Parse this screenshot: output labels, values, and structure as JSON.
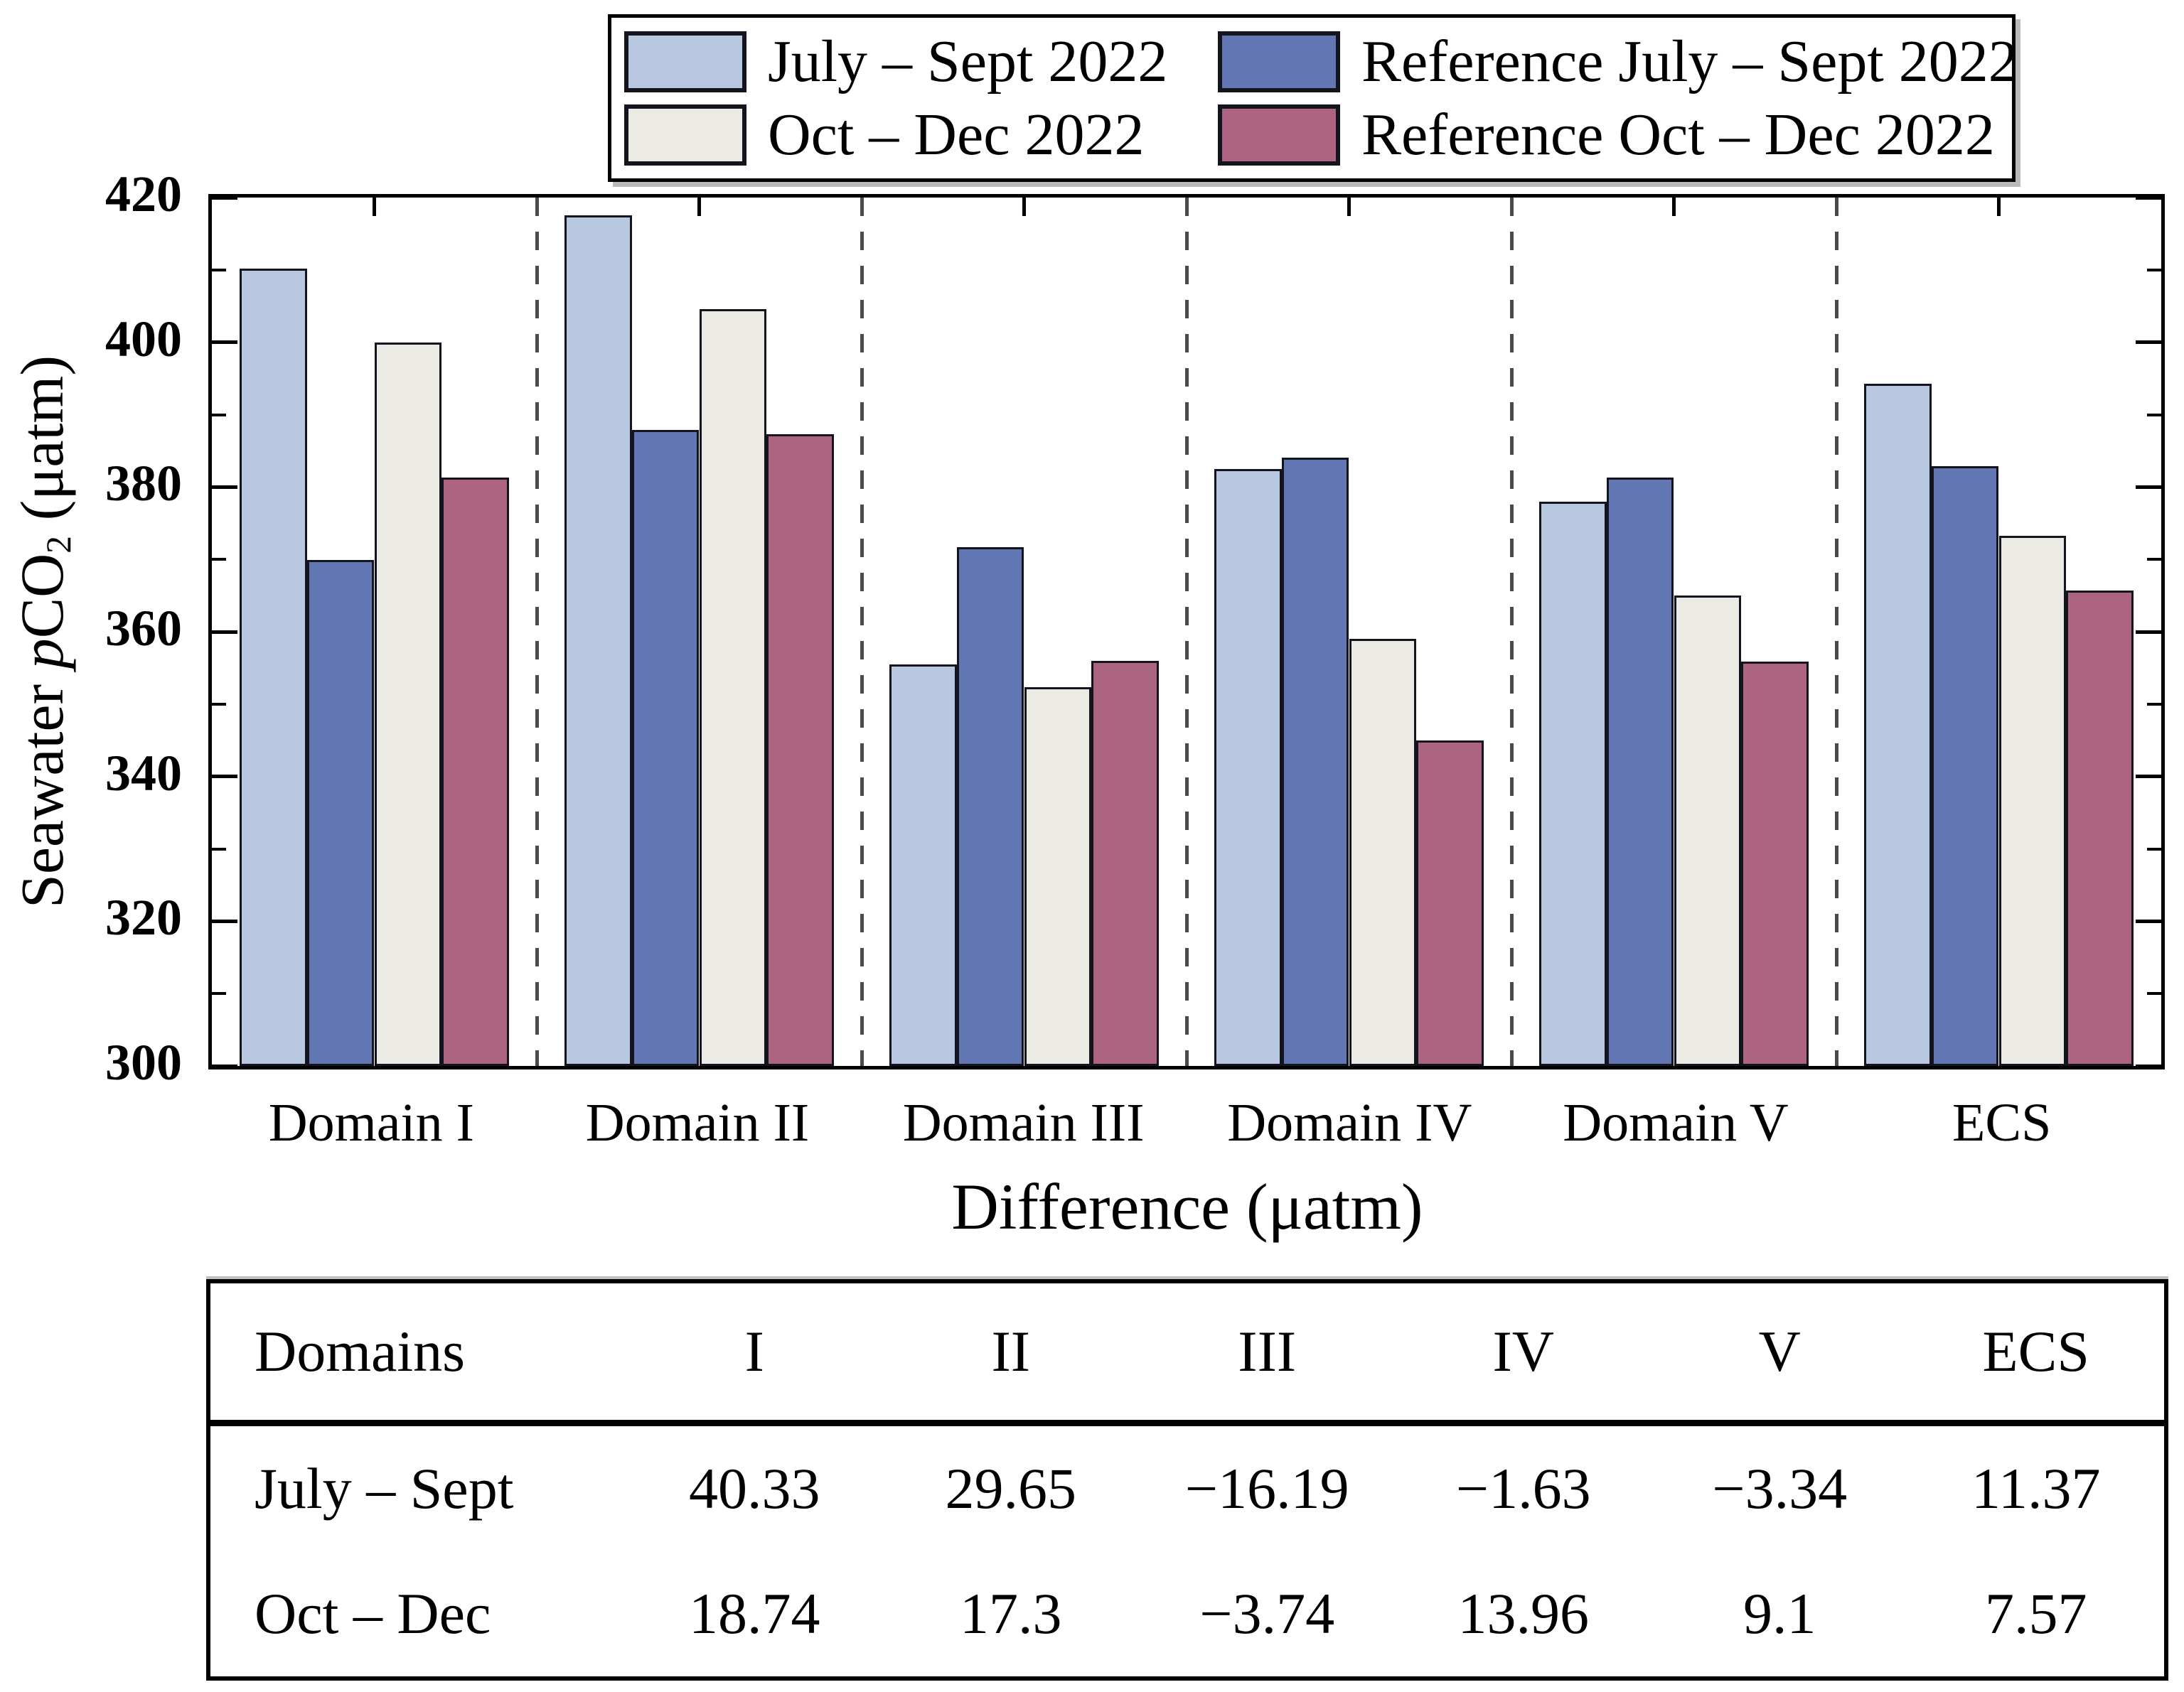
{
  "chart_data": {
    "type": "bar",
    "categories": [
      "Domain I",
      "Domain II",
      "Domain III",
      "Domain IV",
      "Domain V",
      "ECS"
    ],
    "series": [
      {
        "name": "July – Sept 2022",
        "color": "#b8c8e0",
        "values": [
          410.2,
          417.5,
          355.5,
          382.5,
          378.0,
          394.3
        ]
      },
      {
        "name": "Reference July – Sept 2022",
        "color": "#6377b4",
        "values": [
          369.9,
          387.9,
          371.7,
          384.1,
          381.3,
          382.9
        ]
      },
      {
        "name": "Oct – Dec 2022",
        "color": "#eceae4",
        "values": [
          400.0,
          404.6,
          352.3,
          359.0,
          365.0,
          373.3
        ]
      },
      {
        "name": "Reference Oct – Dec 2022",
        "color": "#ad6480",
        "values": [
          381.3,
          387.3,
          356.0,
          345.0,
          355.9,
          365.7
        ]
      }
    ],
    "ylabel_parts": {
      "prefix": "Seawater ",
      "p_italic": "p",
      "co": "CO",
      "sub": "2",
      "suffix": " (μatm)"
    },
    "ylim": [
      300,
      420
    ],
    "ytick_major": 20,
    "ytick_minor": 10,
    "grid": false,
    "legend_position": "top-center",
    "group_separators": "dashed"
  },
  "difference_table": {
    "title": "Difference (μatm)",
    "header": [
      "Domains",
      "I",
      "II",
      "III",
      "IV",
      "V",
      "ECS"
    ],
    "rows": [
      {
        "label": "July – Sept",
        "values": [
          "40.33",
          "29.65",
          "−16.19",
          "−1.63",
          "−3.34",
          "11.37"
        ]
      },
      {
        "label": "Oct – Dec",
        "values": [
          "18.74",
          "17.3",
          "−3.74",
          "13.96",
          "9.1",
          "7.57"
        ]
      }
    ]
  },
  "colors": {
    "bar_border": "#14141e",
    "axis_frame": "#000000",
    "dashed_separator": "#4a4a4a",
    "background": "#ffffff"
  }
}
